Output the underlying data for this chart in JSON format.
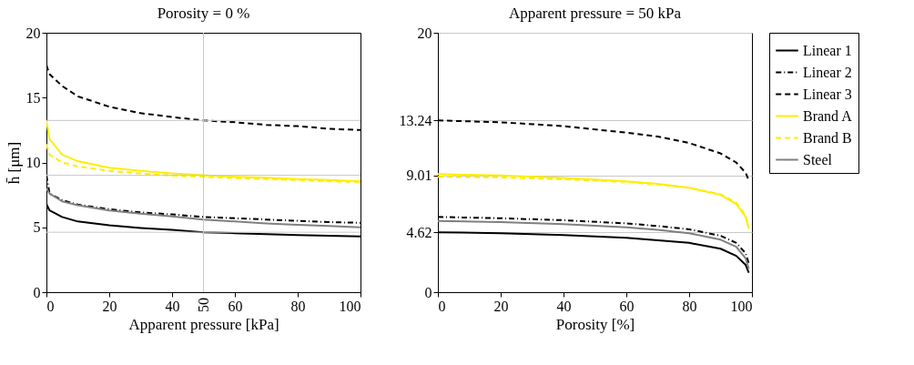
{
  "chart_data": [
    {
      "type": "line",
      "title": "Porosity = 0 %",
      "xlabel": "Apparent pressure [kPa]",
      "ylabel": "h̄ [μm]",
      "x": [
        0,
        1,
        5,
        10,
        20,
        30,
        40,
        50,
        60,
        70,
        80,
        90,
        100
      ],
      "xlim": [
        0,
        100
      ],
      "xticks": [
        0,
        20,
        40,
        60,
        80,
        100
      ],
      "ylim": [
        0,
        20
      ],
      "yticks": [
        0,
        5,
        10,
        15,
        20
      ],
      "grid": false,
      "legend": "right",
      "marker": "none",
      "ref_lines": [
        {
          "axis": "y",
          "value": 13.24,
          "label": null,
          "color": "#c8c8c8"
        },
        {
          "axis": "y",
          "value": 9.01,
          "label": null,
          "color": "#c8c8c8"
        },
        {
          "axis": "y",
          "value": 4.62,
          "label": null,
          "color": "#c8c8c8"
        },
        {
          "axis": "x",
          "value": 50,
          "label": "50",
          "color": "#c8c8c8"
        }
      ],
      "series": [
        {
          "name": "Linear 1",
          "color": "#000000",
          "line_style": "solid",
          "values": [
            6.8,
            6.3,
            5.8,
            5.45,
            5.15,
            4.95,
            4.8,
            4.62,
            4.55,
            4.48,
            4.4,
            4.35,
            4.3
          ]
        },
        {
          "name": "Linear 2",
          "color": "#000000",
          "line_style": "dashdot",
          "values": [
            9.0,
            7.6,
            7.1,
            6.75,
            6.4,
            6.15,
            6.0,
            5.8,
            5.7,
            5.6,
            5.5,
            5.4,
            5.35
          ]
        },
        {
          "name": "Linear 3",
          "color": "#000000",
          "line_style": "dashed",
          "values": [
            17.5,
            16.8,
            15.9,
            15.1,
            14.3,
            13.8,
            13.5,
            13.24,
            13.1,
            12.9,
            12.8,
            12.6,
            12.5
          ]
        },
        {
          "name": "Brand A",
          "color": "#ffed00",
          "line_style": "solid",
          "values": [
            13.2,
            11.8,
            10.6,
            10.1,
            9.6,
            9.35,
            9.15,
            9.01,
            8.9,
            8.82,
            8.72,
            8.65,
            8.55
          ]
        },
        {
          "name": "Brand B",
          "color": "#ffed00",
          "line_style": "dashed",
          "values": [
            11.4,
            10.6,
            10.0,
            9.7,
            9.35,
            9.15,
            9.0,
            8.9,
            8.8,
            8.72,
            8.65,
            8.55,
            8.5
          ]
        },
        {
          "name": "Steel",
          "color": "#808080",
          "line_style": "solid",
          "values": [
            8.0,
            7.6,
            7.0,
            6.7,
            6.3,
            6.05,
            5.85,
            5.6,
            5.45,
            5.3,
            5.2,
            5.1,
            5.0
          ]
        }
      ]
    },
    {
      "type": "line",
      "title": "Apparent pressure = 50 kPa",
      "xlabel": "Porosity [%]",
      "x": [
        0,
        20,
        40,
        60,
        70,
        80,
        90,
        95,
        98,
        99
      ],
      "xlim": [
        0,
        100
      ],
      "xticks": [
        0,
        20,
        40,
        60,
        80,
        100
      ],
      "ylim": [
        0,
        20
      ],
      "yticks": [
        0,
        {
          "value": 4.62,
          "label": "4.62"
        },
        {
          "value": 9.01,
          "label": "9.01"
        },
        {
          "value": 13.24,
          "label": "13.24"
        },
        20
      ],
      "grid": "y",
      "legend": "right",
      "marker": "none",
      "series": [
        {
          "name": "Linear 1",
          "color": "#000000",
          "line_style": "solid",
          "values": [
            4.62,
            4.55,
            4.4,
            4.2,
            4.0,
            3.8,
            3.35,
            2.8,
            2.1,
            1.5
          ]
        },
        {
          "name": "Linear 2",
          "color": "#000000",
          "line_style": "dashdot",
          "values": [
            5.8,
            5.7,
            5.55,
            5.3,
            5.1,
            4.85,
            4.35,
            3.8,
            3.0,
            2.2
          ]
        },
        {
          "name": "Linear 3",
          "color": "#000000",
          "line_style": "dashed",
          "values": [
            13.24,
            13.1,
            12.8,
            12.3,
            12.0,
            11.5,
            10.7,
            10.0,
            9.2,
            8.6
          ]
        },
        {
          "name": "Brand A",
          "color": "#ffed00",
          "line_style": "solid",
          "values": [
            9.1,
            9.0,
            8.8,
            8.55,
            8.35,
            8.05,
            7.5,
            6.8,
            5.8,
            4.9
          ]
        },
        {
          "name": "Brand B",
          "color": "#ffed00",
          "line_style": "dashed",
          "values": [
            8.9,
            8.85,
            8.7,
            8.5,
            8.3,
            8.05,
            7.55,
            6.9,
            5.9,
            5.0
          ]
        },
        {
          "name": "Steel",
          "color": "#808080",
          "line_style": "solid",
          "values": [
            5.5,
            5.4,
            5.25,
            5.0,
            4.8,
            4.55,
            4.05,
            3.5,
            2.6,
            1.8
          ]
        }
      ]
    }
  ]
}
